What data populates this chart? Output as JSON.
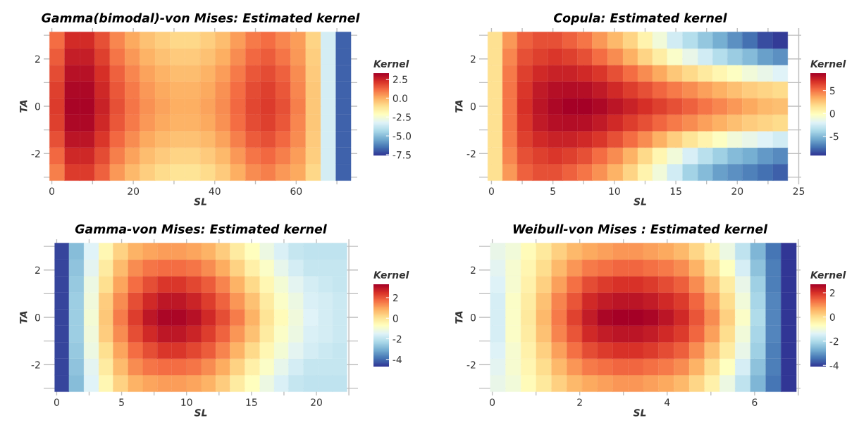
{
  "chart_data": [
    {
      "type": "heatmap",
      "title": "Gamma(bimodal)-von Mises: Estimated kernel",
      "xlabel": "SL",
      "ylabel": "TA",
      "clabel": "Kernel",
      "grid": true,
      "x": [
        1.3,
        5.0,
        8.7,
        12.4,
        16.1,
        19.8,
        23.5,
        27.2,
        30.9,
        34.6,
        38.3,
        42.0,
        45.7,
        49.4,
        53.1,
        56.8,
        60.5,
        64.2,
        67.9,
        71.6
      ],
      "y": [
        -2.79,
        -2.09,
        -1.4,
        -0.7,
        0,
        0.7,
        1.4,
        2.09,
        2.79
      ],
      "cells": [
        [
          0.8,
          2.0,
          2.0,
          1.3,
          0.4,
          -0.2,
          -0.7,
          -1.0,
          -1.2,
          -1.2,
          -1.0,
          -0.6,
          0.0,
          0.6,
          0.8,
          0.4,
          0.1,
          -0.9,
          -3.5,
          -6.8
        ],
        [
          1.2,
          2.4,
          2.4,
          1.7,
          0.8,
          0.2,
          -0.3,
          -0.6,
          -0.8,
          -0.8,
          -0.6,
          -0.2,
          0.4,
          1.0,
          1.2,
          0.8,
          0.3,
          -0.7,
          -3.5,
          -6.8
        ],
        [
          1.6,
          2.8,
          2.8,
          2.1,
          1.2,
          0.6,
          0.1,
          -0.2,
          -0.4,
          -0.4,
          -0.2,
          0.2,
          0.8,
          1.4,
          1.6,
          1.2,
          0.6,
          -0.6,
          -3.5,
          -6.8
        ],
        [
          1.9,
          3.1,
          3.1,
          2.4,
          1.5,
          0.9,
          0.4,
          0.1,
          -0.1,
          -0.1,
          0.1,
          0.5,
          1.1,
          1.7,
          1.9,
          1.5,
          0.7,
          -0.5,
          -3.5,
          -6.8
        ],
        [
          2.0,
          3.2,
          3.2,
          2.5,
          1.6,
          1.0,
          0.5,
          0.2,
          0.0,
          0.0,
          0.2,
          0.6,
          1.2,
          1.8,
          2.0,
          1.6,
          0.8,
          -0.5,
          -3.5,
          -6.8
        ],
        [
          1.9,
          3.1,
          3.1,
          2.4,
          1.5,
          0.9,
          0.4,
          0.1,
          -0.1,
          -0.1,
          0.1,
          0.5,
          1.1,
          1.7,
          1.9,
          1.5,
          0.7,
          -0.5,
          -3.5,
          -6.8
        ],
        [
          1.7,
          2.9,
          2.9,
          2.2,
          1.3,
          0.7,
          0.2,
          -0.1,
          -0.3,
          -0.3,
          -0.1,
          0.3,
          0.9,
          1.5,
          1.7,
          1.3,
          0.6,
          -0.6,
          -3.5,
          -6.8
        ],
        [
          1.4,
          2.6,
          2.6,
          1.9,
          1.0,
          0.4,
          -0.1,
          -0.4,
          -0.6,
          -0.6,
          -0.4,
          0.0,
          0.6,
          1.2,
          1.4,
          1.0,
          0.4,
          -0.7,
          -3.5,
          -6.8
        ],
        [
          1.1,
          2.3,
          2.3,
          1.6,
          0.7,
          0.1,
          -0.4,
          -0.7,
          -0.9,
          -0.9,
          -0.7,
          -0.3,
          0.3,
          0.9,
          1.1,
          0.7,
          0.3,
          -0.8,
          -3.5,
          -6.8
        ]
      ],
      "xlim": [
        -2,
        75
      ],
      "ylim": [
        -3.3,
        3.3
      ],
      "xticks": [
        0,
        {
          "value": 10,
          "label": null
        },
        20,
        {
          "value": 30,
          "label": null
        },
        40,
        {
          "value": 50,
          "label": null
        },
        60,
        {
          "value": 70,
          "label": null
        }
      ],
      "yticks": [
        {
          "value": -3,
          "label": null
        },
        -2,
        {
          "value": -1,
          "label": null
        },
        0,
        {
          "value": 1,
          "label": null
        },
        2,
        {
          "value": 3,
          "label": null
        }
      ],
      "clim": [
        -7.6,
        3.3
      ],
      "cticks": [
        {
          "value": -7.5,
          "label": "-7.5"
        },
        {
          "value": -5,
          "label": "-5.0"
        },
        {
          "value": -2.5,
          "label": "-2.5"
        },
        {
          "value": 0,
          "label": "0.0"
        },
        {
          "value": 2.5,
          "label": "2.5"
        }
      ]
    },
    {
      "type": "heatmap",
      "title": "Copula: Estimated kernel",
      "xlabel": "SL",
      "ylabel": "TA",
      "clabel": "Kernel",
      "grid": true,
      "x": [
        0.3,
        1.5,
        2.7,
        4.0,
        5.2,
        6.4,
        7.6,
        8.8,
        10.1,
        11.3,
        12.5,
        13.7,
        14.9,
        16.2,
        17.4,
        18.6,
        19.8,
        21.0,
        22.3,
        23.5
      ],
      "y": [
        -2.79,
        -2.09,
        -1.4,
        -0.7,
        0,
        0.7,
        1.4,
        2.09,
        2.79
      ],
      "cells": [
        [
          1.5,
          4,
          5.5,
          6,
          6,
          5.5,
          5,
          4.2,
          3.2,
          2,
          0.5,
          -1,
          -2.5,
          -4,
          -5,
          -6,
          -6.5,
          -7,
          -7.5,
          -8
        ],
        [
          1.5,
          4.5,
          6,
          6.5,
          6.8,
          6.5,
          6,
          5.2,
          4.3,
          3.2,
          1.8,
          0.3,
          -1,
          -2.3,
          -3.3,
          -4.2,
          -5,
          -5.5,
          -6.2,
          -6.7
        ],
        [
          1.5,
          4.8,
          6.5,
          7.2,
          7.5,
          7.5,
          7.2,
          6.8,
          6,
          5.2,
          4.3,
          3.3,
          2.2,
          1.3,
          0.5,
          -0.3,
          -1,
          -1.5,
          -2,
          -2.5
        ],
        [
          1.5,
          5,
          6.8,
          7.8,
          8.2,
          8.3,
          8.2,
          7.8,
          7.2,
          6.6,
          6,
          5.4,
          4.8,
          4.3,
          3.8,
          3.3,
          2.8,
          2.3,
          2,
          1.7
        ],
        [
          1.5,
          5,
          7,
          8,
          8.5,
          8.8,
          8.8,
          8.5,
          8,
          7.5,
          7,
          6.5,
          6,
          5.5,
          5,
          4.5,
          4,
          3.5,
          3,
          2.8
        ],
        [
          1.5,
          5,
          6.8,
          7.8,
          8.2,
          8.3,
          8.2,
          7.8,
          7.2,
          6.6,
          6,
          5.4,
          4.8,
          4.3,
          3.8,
          3.3,
          2.8,
          2.3,
          2,
          1.7
        ],
        [
          1.5,
          4.8,
          6.5,
          7.2,
          7.5,
          7.5,
          7.2,
          6.8,
          6,
          5.2,
          4.3,
          3.5,
          2.5,
          1.8,
          1,
          0.3,
          -0.3,
          -1,
          -1.5,
          -2
        ],
        [
          1.5,
          4.5,
          6,
          6.5,
          6.8,
          6.5,
          6,
          5.2,
          4.3,
          3.3,
          2,
          0.8,
          -0.5,
          -1.5,
          -2.5,
          -3.5,
          -4.3,
          -5,
          -6,
          -6.5
        ],
        [
          1.5,
          4,
          5.5,
          6,
          6,
          5.5,
          5,
          4,
          3,
          2,
          0.5,
          -1,
          -2.5,
          -3.5,
          -4.5,
          -5.5,
          -6.5,
          -7.5,
          -8.5,
          -9
        ]
      ],
      "xlim": [
        -1,
        25.2
      ],
      "ylim": [
        -3.3,
        3.3
      ],
      "xticks": [
        0,
        {
          "value": 2.5,
          "label": null
        },
        5,
        {
          "value": 7.5,
          "label": null
        },
        10,
        {
          "value": 12.5,
          "label": null
        },
        15,
        {
          "value": 17.5,
          "label": null
        },
        20,
        {
          "value": 22.5,
          "label": null
        },
        25
      ],
      "yticks": [
        {
          "value": -3,
          "label": null
        },
        -2,
        {
          "value": -1,
          "label": null
        },
        0,
        {
          "value": 1,
          "label": null
        },
        2,
        {
          "value": 3,
          "label": null
        }
      ],
      "clim": [
        -9.2,
        8.8
      ],
      "cticks": [
        -5,
        0,
        5
      ]
    },
    {
      "type": "heatmap",
      "title": "Gamma-von Mises: Estimated kernel",
      "xlabel": "SL",
      "ylabel": "TA",
      "clabel": "Kernel",
      "grid": true,
      "x": [
        0.4,
        1.5,
        2.7,
        3.8,
        4.9,
        6.1,
        7.2,
        8.3,
        9.4,
        10.6,
        11.7,
        12.8,
        13.9,
        15.1,
        16.2,
        17.3,
        18.4,
        19.6,
        20.7,
        21.8
      ],
      "y": [
        -2.79,
        -2.09,
        -1.4,
        -0.7,
        0,
        0.7,
        1.4,
        2.09,
        2.79
      ],
      "cells": [
        [
          -4.5,
          -2.8,
          -1.5,
          -0.5,
          0.3,
          0.8,
          1.0,
          1.1,
          1.1,
          1.0,
          0.8,
          0.4,
          -0.2,
          -0.7,
          -1.2,
          -1.6,
          -1.9,
          -2.0,
          -2.0,
          -2.0
        ],
        [
          -4.5,
          -2.7,
          -1.4,
          -0.2,
          0.7,
          1.3,
          1.6,
          1.7,
          1.7,
          1.6,
          1.3,
          0.9,
          0.3,
          -0.3,
          -0.8,
          -1.3,
          -1.7,
          -1.9,
          -1.9,
          -1.9
        ],
        [
          -4.5,
          -2.6,
          -1.2,
          0.1,
          1.0,
          1.7,
          2.1,
          2.4,
          2.4,
          2.2,
          1.9,
          1.4,
          0.8,
          0.2,
          -0.5,
          -1.0,
          -1.4,
          -1.7,
          -1.8,
          -1.9
        ],
        [
          -4.5,
          -2.5,
          -1.1,
          0.4,
          1.3,
          2.1,
          2.6,
          2.9,
          2.9,
          2.7,
          2.3,
          1.8,
          1.2,
          0.6,
          -0.2,
          -0.8,
          -1.2,
          -1.6,
          -1.7,
          -1.8
        ],
        [
          -4.5,
          -2.5,
          -1,
          0.5,
          1.5,
          2.3,
          2.9,
          3.2,
          3.2,
          3,
          2.6,
          2.1,
          1.5,
          0.8,
          0,
          -0.6,
          -1.1,
          -1.5,
          -1.7,
          -1.8
        ],
        [
          -4.5,
          -2.5,
          -1.1,
          0.4,
          1.3,
          2.1,
          2.6,
          2.9,
          2.9,
          2.7,
          2.3,
          1.8,
          1.2,
          0.6,
          -0.2,
          -0.8,
          -1.2,
          -1.6,
          -1.7,
          -1.8
        ],
        [
          -4.5,
          -2.6,
          -1.2,
          0.1,
          1.0,
          1.7,
          2.1,
          2.4,
          2.4,
          2.2,
          1.9,
          1.4,
          0.8,
          0.2,
          -0.5,
          -1.0,
          -1.4,
          -1.7,
          -1.8,
          -1.9
        ],
        [
          -4.5,
          -2.7,
          -1.4,
          -0.2,
          0.7,
          1.3,
          1.6,
          1.7,
          1.7,
          1.6,
          1.3,
          0.9,
          0.3,
          -0.3,
          -0.8,
          -1.3,
          -1.7,
          -1.9,
          -1.9,
          -1.9
        ],
        [
          -4.5,
          -2.8,
          -1.5,
          -0.5,
          0.3,
          0.8,
          1.0,
          1.1,
          1.1,
          1.0,
          0.8,
          0.4,
          -0.2,
          -0.7,
          -1.2,
          -1.6,
          -1.9,
          -2.0,
          -2.0,
          -2.0
        ]
      ],
      "xlim": [
        -1,
        23.2
      ],
      "ylim": [
        -3.3,
        3.3
      ],
      "xticks": [
        0,
        {
          "value": 2.5,
          "label": null
        },
        5,
        {
          "value": 7.5,
          "label": null
        },
        10,
        {
          "value": 12.5,
          "label": null
        },
        15,
        {
          "value": 17.5,
          "label": null
        },
        20,
        {
          "value": 22.5,
          "label": null
        }
      ],
      "yticks": [
        {
          "value": -3,
          "label": null
        },
        -2,
        {
          "value": -1,
          "label": null
        },
        0,
        {
          "value": 1,
          "label": null
        },
        2,
        {
          "value": 3,
          "label": null
        }
      ],
      "clim": [
        -4.7,
        3.3
      ],
      "cticks": [
        -4,
        -2,
        0,
        2
      ]
    },
    {
      "type": "heatmap",
      "title": "Weibull-von Mises : Estimated kernel",
      "xlabel": "SL",
      "ylabel": "TA",
      "clabel": "Kernel",
      "grid": true,
      "x": [
        0.13,
        0.48,
        0.83,
        1.18,
        1.53,
        1.88,
        2.23,
        2.58,
        2.93,
        3.28,
        3.63,
        3.98,
        4.33,
        4.68,
        5.03,
        5.38,
        5.73,
        6.08,
        6.43,
        6.78
      ],
      "y": [
        -2.79,
        -2.09,
        -1.4,
        -0.7,
        0,
        0.7,
        1.4,
        2.09,
        2.79
      ],
      "cells": [
        [
          -1.2,
          -1.0,
          -0.6,
          -0.2,
          0.2,
          0.5,
          0.7,
          0.8,
          0.9,
          0.9,
          0.8,
          0.7,
          0.5,
          0.1,
          -0.4,
          -1.1,
          -1.8,
          -2.6,
          -3.4,
          -4.1
        ],
        [
          -1.3,
          -0.9,
          -0.5,
          0.0,
          0.5,
          0.9,
          1.2,
          1.3,
          1.4,
          1.4,
          1.3,
          1.2,
          1.0,
          0.6,
          0.0,
          -0.7,
          -1.5,
          -2.4,
          -3.3,
          -4.1
        ],
        [
          -1.4,
          -0.9,
          -0.4,
          0.2,
          0.8,
          1.3,
          1.7,
          1.9,
          2.0,
          2.0,
          1.9,
          1.7,
          1.5,
          1.0,
          0.4,
          -0.3,
          -1.2,
          -2.2,
          -3.3,
          -4.1
        ],
        [
          -1.5,
          -0.8,
          -0.3,
          0.4,
          1.1,
          1.6,
          2.1,
          2.3,
          2.4,
          2.4,
          2.3,
          2.1,
          1.9,
          1.4,
          0.8,
          0.0,
          -1.0,
          -2.1,
          -3.2,
          -4.1
        ],
        [
          -1.5,
          -0.8,
          -0.2,
          0.5,
          1.2,
          1.8,
          2.3,
          2.6,
          2.7,
          2.7,
          2.6,
          2.4,
          2.1,
          1.6,
          1.0,
          0.2,
          -0.8,
          -2.0,
          -3.2,
          -4.1
        ],
        [
          -1.5,
          -0.8,
          -0.3,
          0.4,
          1.1,
          1.6,
          2.1,
          2.3,
          2.4,
          2.4,
          2.3,
          2.1,
          1.9,
          1.4,
          0.8,
          0.0,
          -1.0,
          -2.1,
          -3.2,
          -4.1
        ],
        [
          -1.4,
          -0.9,
          -0.4,
          0.2,
          0.8,
          1.3,
          1.7,
          1.9,
          2.0,
          2.0,
          1.9,
          1.7,
          1.5,
          1.0,
          0.4,
          -0.3,
          -1.2,
          -2.2,
          -3.3,
          -4.1
        ],
        [
          -1.3,
          -0.9,
          -0.5,
          0.0,
          0.5,
          0.9,
          1.2,
          1.3,
          1.4,
          1.4,
          1.3,
          1.2,
          1.0,
          0.6,
          0.0,
          -0.7,
          -1.5,
          -2.4,
          -3.3,
          -4.1
        ],
        [
          -1.2,
          -1.0,
          -0.6,
          -0.2,
          0.2,
          0.5,
          0.7,
          0.8,
          0.9,
          0.9,
          0.8,
          0.7,
          0.5,
          0.1,
          -0.4,
          -1.1,
          -1.8,
          -2.6,
          -3.4,
          -4.1
        ]
      ],
      "xlim": [
        -0.3,
        7.05
      ],
      "ylim": [
        -3.3,
        3.3
      ],
      "xticks": [
        0,
        {
          "value": 1,
          "label": null
        },
        2,
        {
          "value": 3,
          "label": null
        },
        4,
        {
          "value": 5,
          "label": null
        },
        6,
        {
          "value": 7,
          "label": null
        }
      ],
      "yticks": [
        {
          "value": -3,
          "label": null
        },
        -2,
        {
          "value": -1,
          "label": null
        },
        0,
        {
          "value": 1,
          "label": null
        },
        2,
        {
          "value": 3,
          "label": null
        }
      ],
      "clim": [
        -4.1,
        2.7
      ],
      "cticks": [
        -4,
        -2,
        0,
        2
      ]
    }
  ]
}
